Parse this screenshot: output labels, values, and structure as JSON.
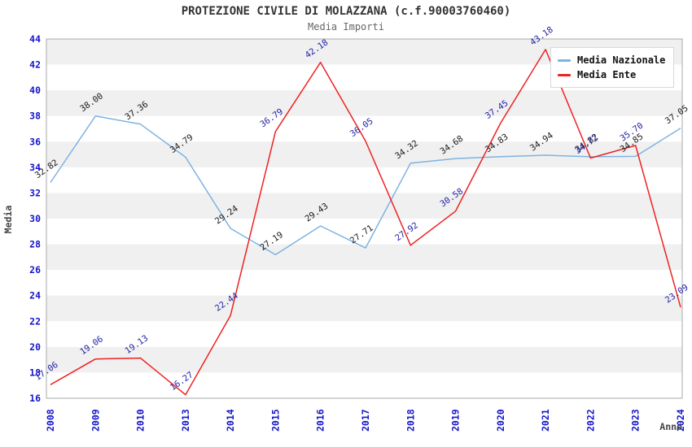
{
  "header": {
    "title": "PROTEZIONE CIVILE DI MOLAZZANA (c.f.90003760460)",
    "subtitle": "Media Importi"
  },
  "colors": {
    "title": "#333333",
    "subtitle": "#666666",
    "tick_label": "#1414cc",
    "axis_label": "#444444",
    "band_gray": "#f0f0f0",
    "band_white": "#ffffff",
    "plot_border": "#aaaaaa",
    "legend_border": "#d8d8d8"
  },
  "chart_data": {
    "type": "line",
    "title": "PROTEZIONE CIVILE DI MOLAZZANA (c.f.90003760460)",
    "subtitle": "Media Importi",
    "xlabel": "Anno",
    "ylabel": "Media",
    "ylim": [
      16,
      44
    ],
    "ytick_step": 2,
    "yticks": [
      44,
      42,
      40,
      38,
      36,
      34,
      32,
      30,
      28,
      26,
      24,
      22,
      20,
      18,
      16
    ],
    "grid": "banded-horizontal",
    "legend_position": "top-right",
    "categories": [
      "2008",
      "2009",
      "2010",
      "2013",
      "2014",
      "2015",
      "2016",
      "2017",
      "2018",
      "2019",
      "2020",
      "2021",
      "2022",
      "2023",
      "2024"
    ],
    "series": [
      {
        "name": "Media Nazionale",
        "color": "#7db3e2",
        "label_color": "#1a1a1a",
        "values": [
          32.82,
          38.0,
          37.36,
          34.79,
          29.24,
          27.19,
          29.43,
          27.71,
          34.32,
          34.68,
          34.83,
          34.94,
          34.82,
          34.85,
          37.05
        ]
      },
      {
        "name": "Media Ente",
        "color": "#ee2222",
        "label_color": "#2222a8",
        "values": [
          17.06,
          19.06,
          19.13,
          16.27,
          22.44,
          36.79,
          42.18,
          36.05,
          27.92,
          30.58,
          37.45,
          43.18,
          34.72,
          35.7,
          23.09
        ]
      }
    ]
  }
}
